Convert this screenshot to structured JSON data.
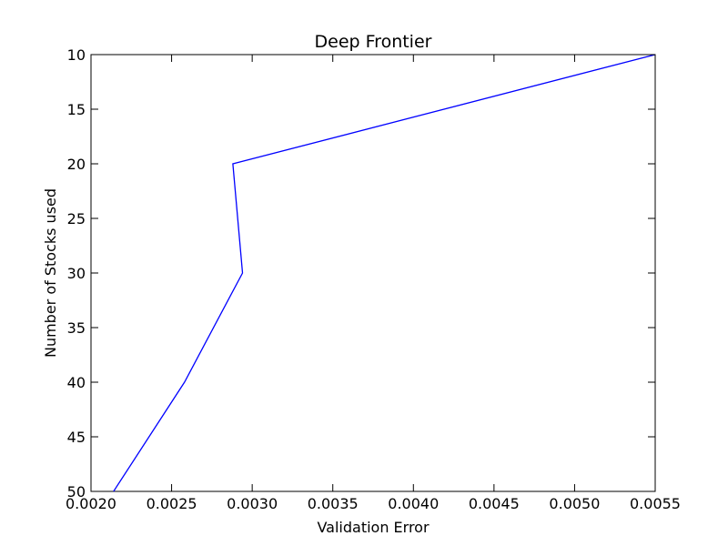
{
  "chart_data": {
    "type": "line",
    "title": "Deep Frontier",
    "xlabel": "Validation Error",
    "ylabel": "Number of Stocks used",
    "xlim": [
      0.002,
      0.0055
    ],
    "ylim": [
      10,
      50
    ],
    "y_inverted": true,
    "grid": false,
    "x_ticks": [
      "0.0020",
      "0.0025",
      "0.0030",
      "0.0035",
      "0.0040",
      "0.0045",
      "0.0050",
      "0.0055"
    ],
    "y_ticks": [
      "10",
      "15",
      "20",
      "25",
      "30",
      "35",
      "40",
      "45",
      "50"
    ],
    "series": [
      {
        "color": "#0000ff",
        "x": [
          0.00214,
          0.00258,
          0.00294,
          0.00288,
          0.0055
        ],
        "y": [
          50,
          40,
          30,
          20,
          10
        ]
      }
    ]
  }
}
